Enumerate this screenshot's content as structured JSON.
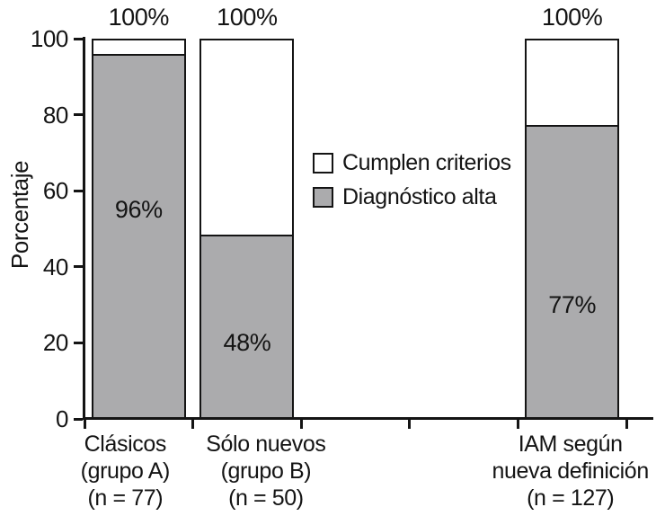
{
  "figure": {
    "background": "#ffffff",
    "ink_color": "#141414"
  },
  "chart_data": {
    "type": "bar",
    "stacked": true,
    "title": "",
    "xlabel": "",
    "ylabel": "Porcentaje",
    "ylim": [
      0,
      100
    ],
    "yticks": [
      0,
      20,
      40,
      60,
      80,
      100
    ],
    "grid": false,
    "categories": [
      "Clásicos (grupo A) (n = 77)",
      "Sólo nuevos (grupo B) (n = 50)",
      "IAM según nueva definición (n = 127)"
    ],
    "category_lines": [
      [
        "Clásicos",
        "(grupo A)",
        "(n = 77)"
      ],
      [
        "Sólo nuevos",
        "(grupo B)",
        "(n = 50)"
      ],
      [
        "IAM según",
        "nueva definición",
        "(n = 127)"
      ]
    ],
    "series": [
      {
        "name": "Diagnóstico alta",
        "color": "#ababad",
        "values": [
          96,
          48,
          77
        ]
      },
      {
        "name": "Cumplen criterios",
        "color": "#ffffff",
        "values": [
          4,
          52,
          23
        ]
      }
    ],
    "bar_total_labels": [
      "100%",
      "100%",
      "100%"
    ],
    "bar_segment_labels": [
      "96%",
      "48%",
      "77%"
    ],
    "legend": {
      "position": "center-right",
      "entries": [
        {
          "label": "Cumplen criterios",
          "color": "#ffffff"
        },
        {
          "label": "Diagnóstico alta",
          "color": "#ababad"
        }
      ]
    },
    "layout_hints": {
      "bar_slots": [
        0,
        1,
        4
      ],
      "slot_count": 5,
      "segment_label_y_pct": [
        55,
        20,
        30
      ],
      "category_center_offsets": [
        -15,
        21,
        -2
      ]
    }
  }
}
